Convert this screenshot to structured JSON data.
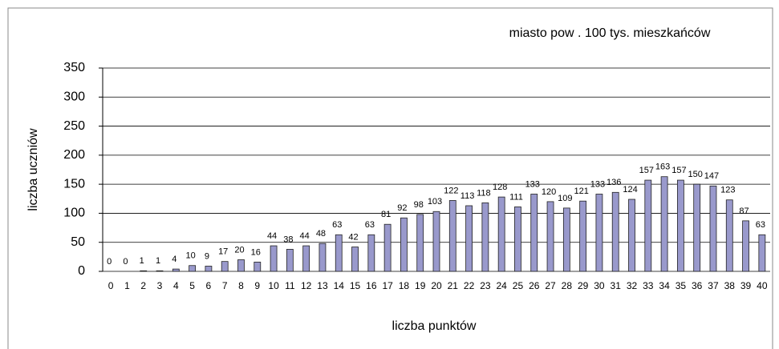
{
  "chart_data": {
    "type": "bar",
    "annotation": "miasto pow . 100 tys. mieszkańców",
    "y_label": "liczba uczniów",
    "x_label": "liczba punktów",
    "categories": [
      0,
      1,
      2,
      3,
      4,
      5,
      6,
      7,
      8,
      9,
      10,
      11,
      12,
      13,
      14,
      15,
      16,
      17,
      18,
      19,
      20,
      21,
      22,
      23,
      24,
      25,
      26,
      27,
      28,
      29,
      30,
      31,
      32,
      33,
      34,
      35,
      36,
      37,
      38,
      39,
      40
    ],
    "values": [
      0,
      0,
      1,
      1,
      4,
      10,
      9,
      17,
      20,
      16,
      44,
      38,
      44,
      48,
      63,
      42,
      63,
      81,
      92,
      98,
      103,
      122,
      113,
      118,
      128,
      111,
      133,
      120,
      109,
      121,
      133,
      136,
      124,
      157,
      163,
      157,
      150,
      147,
      123,
      87,
      63
    ],
    "color": "#9999cc",
    "ylim": [
      0,
      350
    ],
    "yticks": [
      0,
      50,
      100,
      150,
      200,
      250,
      300,
      350
    ],
    "grid": true
  }
}
